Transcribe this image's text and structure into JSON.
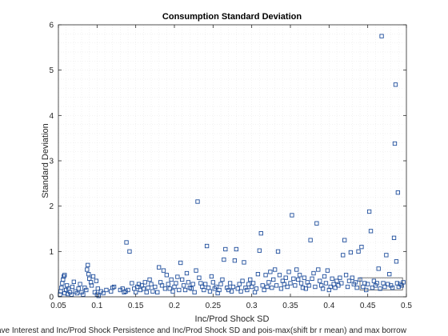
{
  "chart_data": {
    "type": "scatter",
    "title": "Consumption Standard Deviation",
    "xlabel": "Inc/Prod Shock SD",
    "ylabel": "Standard Deviation",
    "xlim": [
      0.05,
      0.5
    ],
    "ylim": [
      0,
      6
    ],
    "xticks": [
      0.05,
      0.1,
      0.15,
      0.2,
      0.25,
      0.3,
      0.35,
      0.4,
      0.45,
      0.5
    ],
    "xtick_labels": [
      "0.05",
      "0.1",
      "0.15",
      "0.2",
      "0.25",
      "0.3",
      "0.35",
      "0.4",
      "0.45",
      "0.5"
    ],
    "yticks": [
      0,
      1,
      2,
      3,
      4,
      5,
      6
    ],
    "ytick_labels": [
      "0",
      "1",
      "2",
      "3",
      "4",
      "5",
      "6"
    ],
    "grid": true,
    "marker": "square",
    "marker_color": "#1f4e9c",
    "annotation": "ave Interest and Inc/Prod Shock Persistence and Inc/Prod Shock SD and pois-max(shift br r mean) and max borrow",
    "series": [
      {
        "points": [
          [
            0.052,
            0.05
          ],
          [
            0.053,
            0.12
          ],
          [
            0.054,
            0.2
          ],
          [
            0.055,
            0.3
          ],
          [
            0.056,
            0.38
          ],
          [
            0.057,
            0.45
          ],
          [
            0.058,
            0.48
          ],
          [
            0.058,
            0.08
          ],
          [
            0.06,
            0.15
          ],
          [
            0.061,
            0.25
          ],
          [
            0.062,
            0.06
          ],
          [
            0.063,
            0.18
          ],
          [
            0.065,
            0.1
          ],
          [
            0.067,
            0.05
          ],
          [
            0.068,
            0.22
          ],
          [
            0.07,
            0.33
          ],
          [
            0.072,
            0.12
          ],
          [
            0.074,
            0.08
          ],
          [
            0.076,
            0.18
          ],
          [
            0.078,
            0.28
          ],
          [
            0.08,
            0.1
          ],
          [
            0.082,
            0.05
          ],
          [
            0.084,
            0.2
          ],
          [
            0.086,
            0.15
          ],
          [
            0.087,
            0.6
          ],
          [
            0.088,
            0.7
          ],
          [
            0.089,
            0.5
          ],
          [
            0.09,
            0.4
          ],
          [
            0.092,
            0.32
          ],
          [
            0.093,
            0.25
          ],
          [
            0.095,
            0.45
          ],
          [
            0.097,
            0.1
          ],
          [
            0.099,
            0.35
          ],
          [
            0.1,
            0.05
          ],
          [
            0.101,
            0.18
          ],
          [
            0.102,
            0.02
          ],
          [
            0.105,
            0.12
          ],
          [
            0.108,
            0.08
          ],
          [
            0.112,
            0.15
          ],
          [
            0.118,
            0.12
          ],
          [
            0.12,
            0.2
          ],
          [
            0.122,
            0.22
          ],
          [
            0.13,
            0.15
          ],
          [
            0.133,
            0.18
          ],
          [
            0.135,
            0.1
          ],
          [
            0.137,
            0.12
          ],
          [
            0.138,
            1.2
          ],
          [
            0.14,
            0.15
          ],
          [
            0.142,
            1.0
          ],
          [
            0.145,
            0.3
          ],
          [
            0.148,
            0.18
          ],
          [
            0.15,
            0.1
          ],
          [
            0.152,
            0.22
          ],
          [
            0.154,
            0.28
          ],
          [
            0.156,
            0.15
          ],
          [
            0.158,
            0.25
          ],
          [
            0.16,
            0.18
          ],
          [
            0.162,
            0.32
          ],
          [
            0.164,
            0.1
          ],
          [
            0.166,
            0.2
          ],
          [
            0.168,
            0.38
          ],
          [
            0.17,
            0.28
          ],
          [
            0.172,
            0.12
          ],
          [
            0.175,
            0.22
          ],
          [
            0.178,
            0.1
          ],
          [
            0.18,
            0.65
          ],
          [
            0.182,
            0.32
          ],
          [
            0.184,
            0.25
          ],
          [
            0.186,
            0.58
          ],
          [
            0.188,
            0.18
          ],
          [
            0.19,
            0.48
          ],
          [
            0.192,
            0.28
          ],
          [
            0.194,
            0.18
          ],
          [
            0.196,
            0.38
          ],
          [
            0.198,
            0.12
          ],
          [
            0.2,
            0.22
          ],
          [
            0.202,
            0.3
          ],
          [
            0.204,
            0.44
          ],
          [
            0.206,
            0.15
          ],
          [
            0.208,
            0.75
          ],
          [
            0.21,
            0.38
          ],
          [
            0.212,
            0.25
          ],
          [
            0.214,
            0.15
          ],
          [
            0.216,
            0.52
          ],
          [
            0.218,
            0.32
          ],
          [
            0.22,
            0.2
          ],
          [
            0.222,
            0.18
          ],
          [
            0.224,
            0.28
          ],
          [
            0.226,
            0.1
          ],
          [
            0.228,
            0.58
          ],
          [
            0.23,
            2.1
          ],
          [
            0.232,
            0.42
          ],
          [
            0.234,
            0.3
          ],
          [
            0.236,
            0.22
          ],
          [
            0.238,
            0.15
          ],
          [
            0.24,
            0.28
          ],
          [
            0.242,
            1.12
          ],
          [
            0.244,
            0.2
          ],
          [
            0.246,
            0.12
          ],
          [
            0.248,
            0.45
          ],
          [
            0.25,
            0.32
          ],
          [
            0.252,
            0.18
          ],
          [
            0.254,
            0.22
          ],
          [
            0.256,
            0.08
          ],
          [
            0.258,
            0.15
          ],
          [
            0.26,
            0.28
          ],
          [
            0.262,
            0.38
          ],
          [
            0.264,
            0.82
          ],
          [
            0.266,
            1.05
          ],
          [
            0.268,
            0.2
          ],
          [
            0.27,
            0.15
          ],
          [
            0.272,
            0.3
          ],
          [
            0.274,
            0.12
          ],
          [
            0.276,
            0.22
          ],
          [
            0.278,
            0.8
          ],
          [
            0.28,
            1.05
          ],
          [
            0.282,
            0.18
          ],
          [
            0.284,
            0.28
          ],
          [
            0.286,
            0.12
          ],
          [
            0.288,
            0.35
          ],
          [
            0.29,
            0.76
          ],
          [
            0.292,
            0.2
          ],
          [
            0.294,
            0.15
          ],
          [
            0.296,
            0.28
          ],
          [
            0.298,
            0.38
          ],
          [
            0.3,
            0.22
          ],
          [
            0.302,
            0.3
          ],
          [
            0.304,
            0.1
          ],
          [
            0.306,
            0.18
          ],
          [
            0.308,
            0.5
          ],
          [
            0.31,
            1.02
          ],
          [
            0.312,
            1.4
          ],
          [
            0.314,
            0.25
          ],
          [
            0.316,
            0.15
          ],
          [
            0.318,
            0.48
          ],
          [
            0.32,
            0.22
          ],
          [
            0.322,
            0.32
          ],
          [
            0.324,
            0.55
          ],
          [
            0.326,
            0.2
          ],
          [
            0.328,
            0.38
          ],
          [
            0.33,
            0.6
          ],
          [
            0.332,
            0.25
          ],
          [
            0.334,
            1.0
          ],
          [
            0.336,
            0.48
          ],
          [
            0.338,
            0.18
          ],
          [
            0.34,
            0.35
          ],
          [
            0.342,
            0.28
          ],
          [
            0.344,
            0.42
          ],
          [
            0.346,
            0.22
          ],
          [
            0.348,
            0.55
          ],
          [
            0.35,
            0.3
          ],
          [
            0.352,
            1.8
          ],
          [
            0.354,
            0.4
          ],
          [
            0.356,
            0.25
          ],
          [
            0.358,
            0.6
          ],
          [
            0.36,
            0.38
          ],
          [
            0.362,
            0.48
          ],
          [
            0.364,
            0.3
          ],
          [
            0.366,
            0.2
          ],
          [
            0.368,
            0.42
          ],
          [
            0.37,
            0.18
          ],
          [
            0.372,
            0.32
          ],
          [
            0.374,
            0.25
          ],
          [
            0.376,
            1.25
          ],
          [
            0.378,
            0.4
          ],
          [
            0.38,
            0.52
          ],
          [
            0.382,
            0.22
          ],
          [
            0.384,
            1.62
          ],
          [
            0.386,
            0.6
          ],
          [
            0.388,
            0.35
          ],
          [
            0.39,
            0.25
          ],
          [
            0.392,
            0.18
          ],
          [
            0.394,
            0.45
          ],
          [
            0.396,
            0.3
          ],
          [
            0.398,
            0.58
          ],
          [
            0.4,
            0.15
          ],
          [
            0.402,
            0.22
          ],
          [
            0.404,
            0.4
          ],
          [
            0.406,
            0.28
          ],
          [
            0.408,
            0.2
          ],
          [
            0.41,
            0.35
          ],
          [
            0.412,
            0.25
          ],
          [
            0.414,
            0.42
          ],
          [
            0.416,
            0.3
          ],
          [
            0.418,
            0.92
          ],
          [
            0.42,
            1.25
          ],
          [
            0.422,
            0.48
          ],
          [
            0.424,
            0.22
          ],
          [
            0.426,
            0.35
          ],
          [
            0.428,
            0.98
          ],
          [
            0.43,
            0.42
          ],
          [
            0.432,
            0.28
          ],
          [
            0.434,
            0.32
          ],
          [
            0.436,
            0.2
          ],
          [
            0.438,
            1.0
          ],
          [
            0.44,
            0.38
          ],
          [
            0.442,
            1.1
          ],
          [
            0.444,
            0.22
          ],
          [
            0.446,
            0.3
          ],
          [
            0.448,
            0.15
          ],
          [
            0.45,
            0.28
          ],
          [
            0.452,
            1.88
          ],
          [
            0.454,
            1.45
          ],
          [
            0.456,
            0.2
          ],
          [
            0.458,
            0.35
          ],
          [
            0.46,
            0.25
          ],
          [
            0.462,
            0.3
          ],
          [
            0.464,
            0.62
          ],
          [
            0.466,
            0.18
          ],
          [
            0.468,
            5.75
          ],
          [
            0.47,
            0.3
          ],
          [
            0.472,
            0.22
          ],
          [
            0.474,
            0.92
          ],
          [
            0.476,
            0.28
          ],
          [
            0.478,
            0.5
          ],
          [
            0.48,
            0.25
          ],
          [
            0.482,
            0.2
          ],
          [
            0.484,
            1.3
          ],
          [
            0.485,
            3.38
          ],
          [
            0.486,
            4.68
          ],
          [
            0.487,
            0.78
          ],
          [
            0.488,
            0.3
          ],
          [
            0.489,
            2.3
          ],
          [
            0.49,
            0.22
          ],
          [
            0.492,
            0.28
          ],
          [
            0.494,
            0.25
          ],
          [
            0.496,
            0.32
          ]
        ]
      }
    ],
    "highlight_box": {
      "x": [
        0.44,
        0.495
      ],
      "y": [
        0.15,
        0.42
      ]
    }
  }
}
